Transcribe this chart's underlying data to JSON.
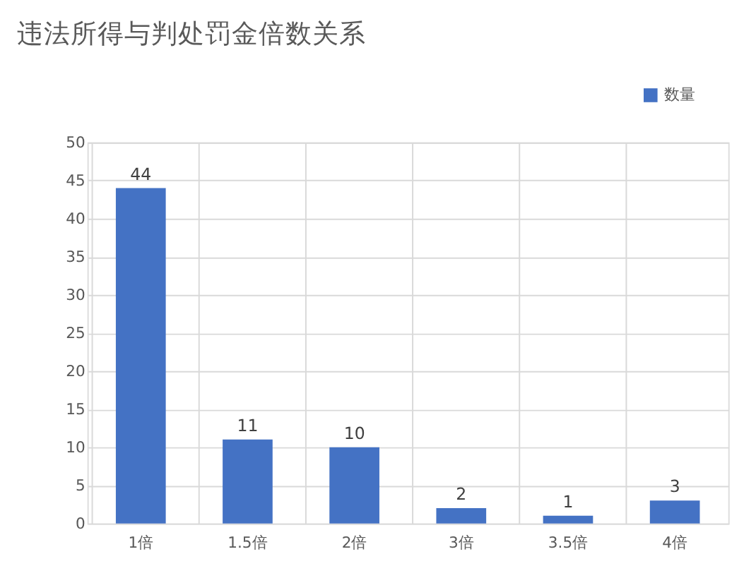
{
  "chart_data": {
    "type": "bar",
    "title": "违法所得与判处罚金倍数关系",
    "categories": [
      "1倍",
      "1.5倍",
      "2倍",
      "3倍",
      "3.5倍",
      "4倍"
    ],
    "series": [
      {
        "name": "数量",
        "color": "#4472c4",
        "values": [
          44,
          11,
          10,
          2,
          1,
          3
        ]
      }
    ],
    "ylim": [
      0,
      50
    ],
    "yticks": [
      0,
      5,
      10,
      15,
      20,
      25,
      30,
      35,
      40,
      45,
      50
    ],
    "grid": true,
    "legend": "top right",
    "data_labels": true
  }
}
